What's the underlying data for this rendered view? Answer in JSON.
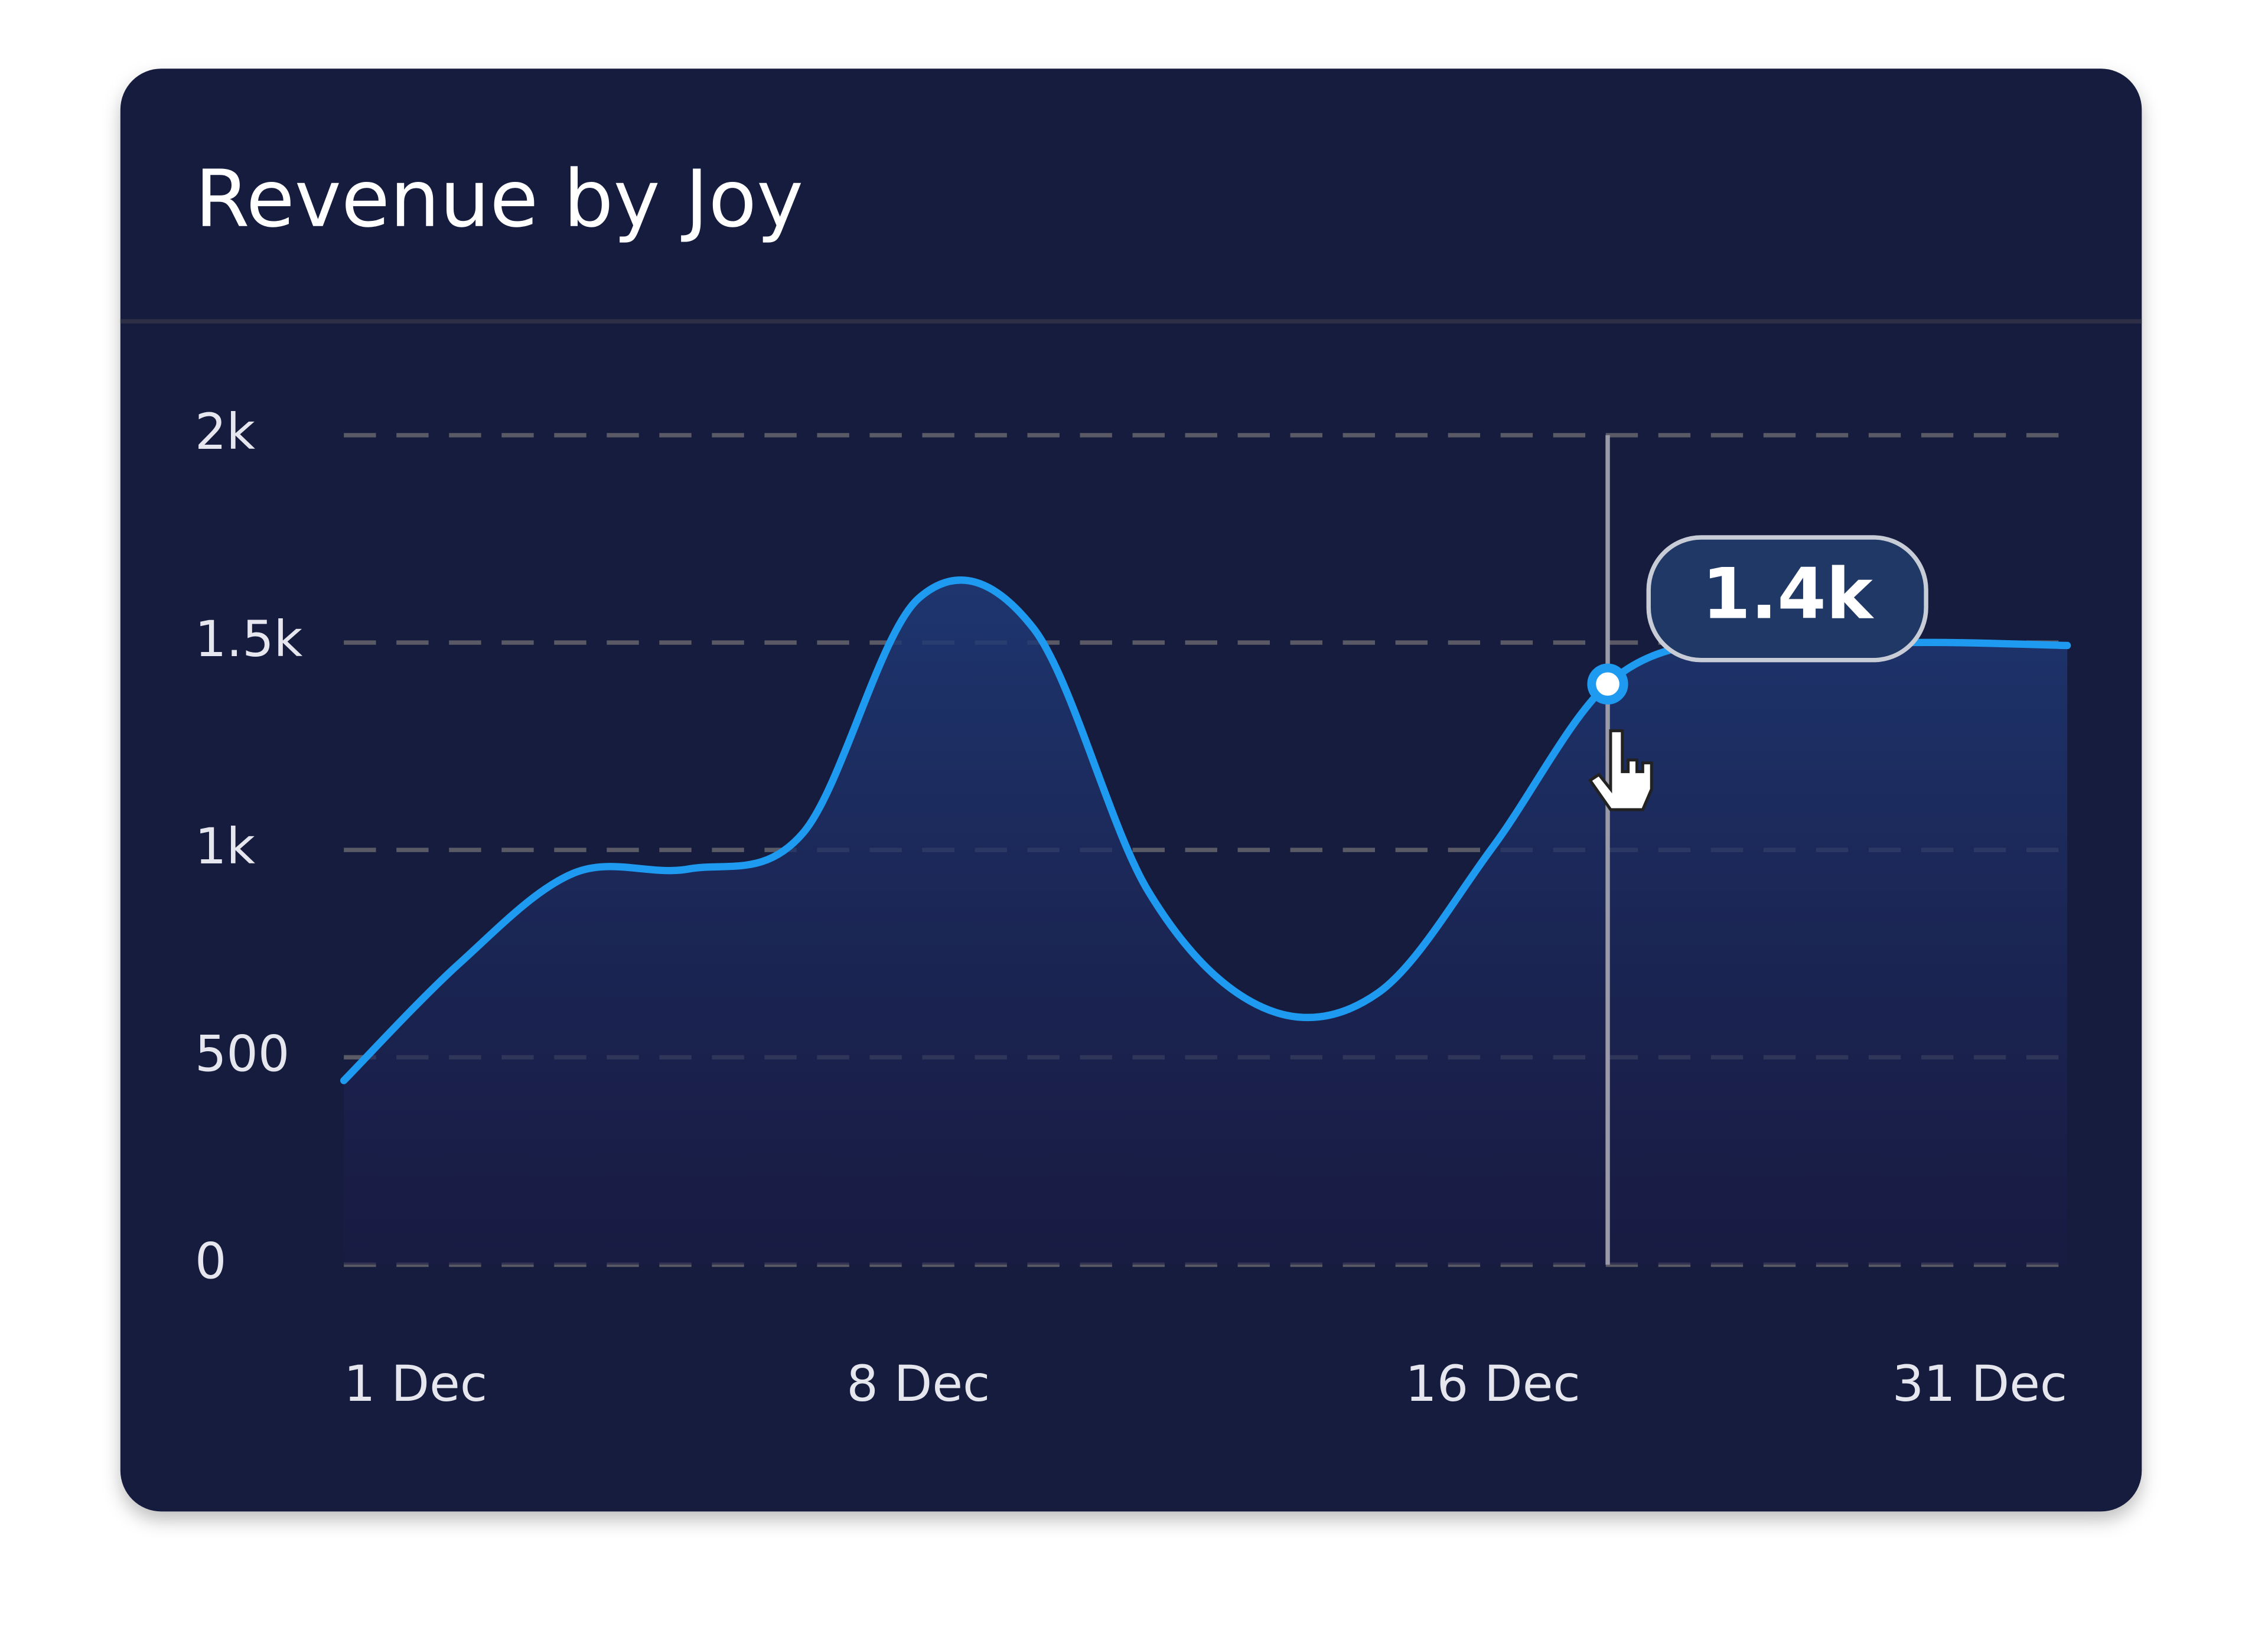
{
  "chart_data": {
    "type": "area",
    "title": "Revenue by Joy",
    "categories": [
      "1 Dec",
      null,
      null,
      null,
      null,
      "8 Dec",
      null,
      null,
      null,
      null,
      "16 Dec",
      null,
      null,
      null,
      null,
      "31 Dec"
    ],
    "values": [
      444,
      725,
      944,
      954,
      1042,
      1606,
      1535,
      901,
      620,
      655,
      1007,
      1400,
      1507,
      1500,
      1500,
      1493
    ],
    "value_labels": [
      null,
      null,
      null,
      null,
      null,
      null,
      null,
      null,
      null,
      null,
      null,
      "1.4k",
      null,
      null,
      null,
      null
    ],
    "color": "#1e9bf0",
    "ylim": [
      0,
      2000
    ],
    "yticks": [
      0,
      500,
      {
        "value": 1000,
        "label": "1k"
      },
      {
        "value": 1500,
        "label": "1.5k"
      },
      {
        "value": 2000,
        "label": "2k"
      }
    ],
    "grid": true
  }
}
